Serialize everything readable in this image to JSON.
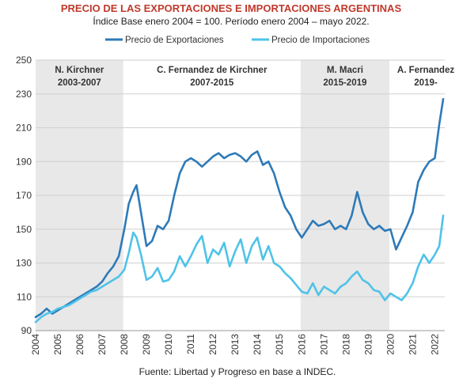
{
  "chart_data": {
    "type": "line",
    "title": "PRECIO DE LAS EXPORTACIONES E IMPORTACIONES ARGENTINAS",
    "subtitle": "Índice Base enero 2004 = 100. Período enero 2004 – mayo 2022.",
    "source": "Fuente: Libertad y Progreso en base a INDEC.",
    "xlabel": "",
    "ylabel": "",
    "xlim": [
      2004,
      2022.45
    ],
    "ylim": [
      90,
      250
    ],
    "y_ticks": [
      "90",
      "110",
      "130",
      "150",
      "170",
      "190",
      "210",
      "230",
      "250"
    ],
    "x_ticks": [
      "2004",
      "2005",
      "2006",
      "2007",
      "2008",
      "2009",
      "2010",
      "2011",
      "2012",
      "2013",
      "2014",
      "2015",
      "2016",
      "2017",
      "2018",
      "2019",
      "2020",
      "2021",
      "2022"
    ],
    "grid": "horizontal",
    "legend_position": "top",
    "periods": [
      {
        "name": "N. Kirchner",
        "years": "2003-2007",
        "start": 2004,
        "end": 2007.95,
        "shaded": true
      },
      {
        "name": "C. Fernandez de Kirchner",
        "years": "2007-2015",
        "start": 2007.95,
        "end": 2015.95,
        "shaded": false
      },
      {
        "name": "M. Macri",
        "years": "2015-2019",
        "start": 2015.95,
        "end": 2019.95,
        "shaded": true
      },
      {
        "name": "A. Fernandez",
        "years": "2019-",
        "start": 2019.95,
        "end": 2022.45,
        "shaded": false
      }
    ],
    "series": [
      {
        "name": "Precio de Exportaciones",
        "color": "#2e7ab8",
        "x": [
          2004,
          2004.25,
          2004.5,
          2004.75,
          2005,
          2005.25,
          2005.5,
          2005.75,
          2006,
          2006.25,
          2006.5,
          2006.75,
          2007,
          2007.25,
          2007.5,
          2007.75,
          2008,
          2008.2,
          2008.4,
          2008.55,
          2008.75,
          2009,
          2009.25,
          2009.5,
          2009.75,
          2010,
          2010.25,
          2010.5,
          2010.75,
          2011,
          2011.25,
          2011.5,
          2011.75,
          2012,
          2012.25,
          2012.5,
          2012.75,
          2013,
          2013.25,
          2013.5,
          2013.75,
          2014,
          2014.25,
          2014.5,
          2014.75,
          2015,
          2015.25,
          2015.5,
          2015.75,
          2016,
          2016.25,
          2016.5,
          2016.75,
          2017,
          2017.25,
          2017.5,
          2017.75,
          2018,
          2018.25,
          2018.5,
          2018.75,
          2019,
          2019.25,
          2019.5,
          2019.75,
          2020,
          2020.25,
          2020.5,
          2020.75,
          2021,
          2021.25,
          2021.5,
          2021.75,
          2022,
          2022.2,
          2022.38
        ],
        "values": [
          98,
          100,
          103,
          100,
          102,
          104,
          106,
          108,
          110,
          112,
          114,
          116,
          119,
          124,
          128,
          134,
          150,
          165,
          172,
          176,
          160,
          140,
          143,
          152,
          150,
          155,
          170,
          183,
          190,
          192,
          190,
          187,
          190,
          193,
          195,
          192,
          194,
          195,
          193,
          190,
          194,
          196,
          188,
          190,
          183,
          172,
          163,
          158,
          150,
          145,
          150,
          155,
          152,
          153,
          155,
          150,
          152,
          150,
          158,
          172,
          160,
          153,
          150,
          152,
          149,
          150,
          138,
          145,
          152,
          160,
          178,
          185,
          190,
          192,
          212,
          227
        ]
      },
      {
        "name": "Precio de Importaciones",
        "color": "#4ec3e8",
        "x": [
          2004,
          2004.25,
          2004.5,
          2004.75,
          2005,
          2005.25,
          2005.5,
          2005.75,
          2006,
          2006.25,
          2006.5,
          2006.75,
          2007,
          2007.25,
          2007.5,
          2007.75,
          2008,
          2008.2,
          2008.4,
          2008.55,
          2008.75,
          2009,
          2009.25,
          2009.5,
          2009.75,
          2010,
          2010.25,
          2010.5,
          2010.75,
          2011,
          2011.25,
          2011.5,
          2011.75,
          2012,
          2012.25,
          2012.5,
          2012.75,
          2013,
          2013.25,
          2013.5,
          2013.75,
          2014,
          2014.25,
          2014.5,
          2014.75,
          2015,
          2015.25,
          2015.5,
          2015.75,
          2016,
          2016.25,
          2016.5,
          2016.75,
          2017,
          2017.25,
          2017.5,
          2017.75,
          2018,
          2018.25,
          2018.5,
          2018.75,
          2019,
          2019.25,
          2019.5,
          2019.75,
          2020,
          2020.25,
          2020.5,
          2020.75,
          2021,
          2021.25,
          2021.5,
          2021.75,
          2022,
          2022.2,
          2022.38
        ],
        "values": [
          95,
          98,
          100,
          101,
          103,
          104,
          105,
          107,
          109,
          111,
          113,
          114,
          116,
          118,
          120,
          122,
          126,
          136,
          148,
          145,
          135,
          120,
          122,
          127,
          119,
          120,
          125,
          134,
          128,
          134,
          141,
          146,
          130,
          138,
          135,
          142,
          128,
          137,
          144,
          130,
          140,
          145,
          132,
          140,
          130,
          128,
          124,
          121,
          117,
          113,
          112,
          118,
          111,
          116,
          114,
          112,
          116,
          118,
          122,
          125,
          120,
          118,
          114,
          113,
          108,
          112,
          110,
          108,
          112,
          118,
          128,
          135,
          130,
          135,
          140,
          158
        ]
      }
    ]
  }
}
